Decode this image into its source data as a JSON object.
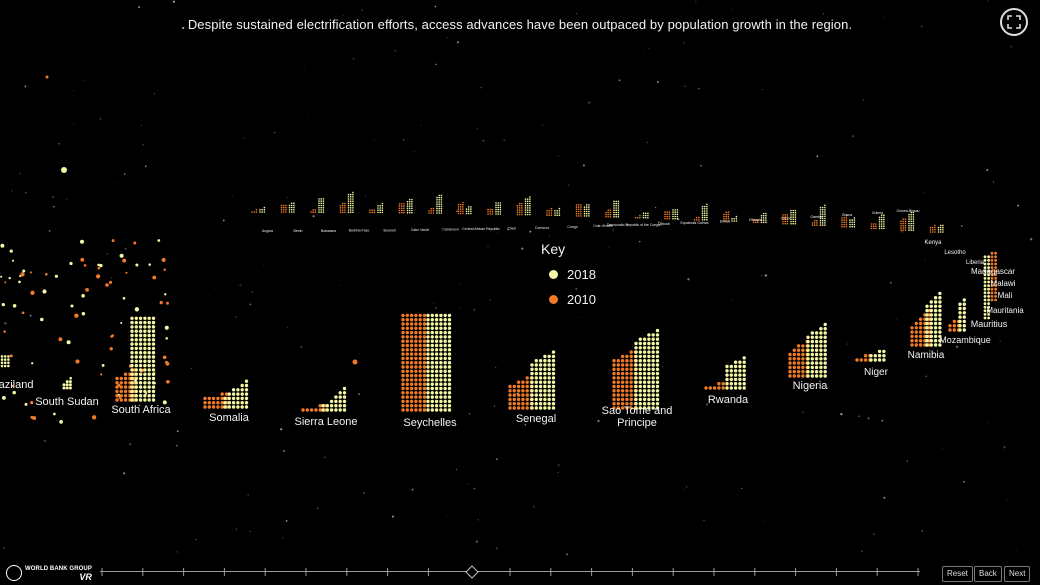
{
  "headline": "Despite sustained electrification efforts, access advances have been outpaced by population growth in the region.",
  "key": {
    "title": "Key",
    "items": [
      {
        "label": "2018",
        "color": "#f4f7a4"
      },
      {
        "label": "2010",
        "color": "#f07a25"
      }
    ]
  },
  "colors": {
    "2018": "#f4f7a4",
    "2010": "#f07a25",
    "background": "#000000"
  },
  "countries_front": [
    {
      "name": "Eswatini",
      "shown": "aziland"
    },
    {
      "name": "South Sudan"
    },
    {
      "name": "South Africa"
    },
    {
      "name": "Somalia"
    },
    {
      "name": "Sierra Leone"
    },
    {
      "name": "Seychelles"
    },
    {
      "name": "Senegal"
    },
    {
      "name": "Sao Tome and Principe",
      "line1": "Sao Tome and",
      "line2": "Principe"
    },
    {
      "name": "Rwanda"
    },
    {
      "name": "Nigeria"
    },
    {
      "name": "Niger"
    },
    {
      "name": "Namibia"
    },
    {
      "name": "Mozambique"
    },
    {
      "name": "Mauritius"
    },
    {
      "name": "Mauritania"
    },
    {
      "name": "Mali"
    },
    {
      "name": "Malawi"
    },
    {
      "name": "Madagascar"
    },
    {
      "name": "Liberia"
    },
    {
      "name": "Lesotho"
    },
    {
      "name": "Kenya"
    },
    {
      "name": "Guinea-Bissau"
    },
    {
      "name": "Guinea"
    },
    {
      "name": "Ghana"
    },
    {
      "name": "Gambia"
    },
    {
      "name": "Gabon"
    },
    {
      "name": "Ethiopia"
    },
    {
      "name": "Eritrea"
    },
    {
      "name": "Equatorial Guinea"
    },
    {
      "name": "Djibouti"
    },
    {
      "name": "Congo, Republic of the",
      "shown": "Democratic Republic of the Congo"
    },
    {
      "name": "Cote d'Ivoire"
    },
    {
      "name": "Congo"
    },
    {
      "name": "Comoros"
    },
    {
      "name": "Chad"
    },
    {
      "name": "Central African Republic"
    },
    {
      "name": "Cameroon"
    },
    {
      "name": "Cabo Verde"
    },
    {
      "name": "Burundi"
    },
    {
      "name": "Burkina Faso"
    },
    {
      "name": "Botswana"
    },
    {
      "name": "Benin"
    },
    {
      "name": "Angola"
    }
  ],
  "logo": {
    "top": "WORLD BANK GROUP",
    "bottom": "VR"
  },
  "nav": {
    "reset": "Reset",
    "back": "Back",
    "next": "Next"
  },
  "fullscreen_icon": "fullscreen-icon"
}
